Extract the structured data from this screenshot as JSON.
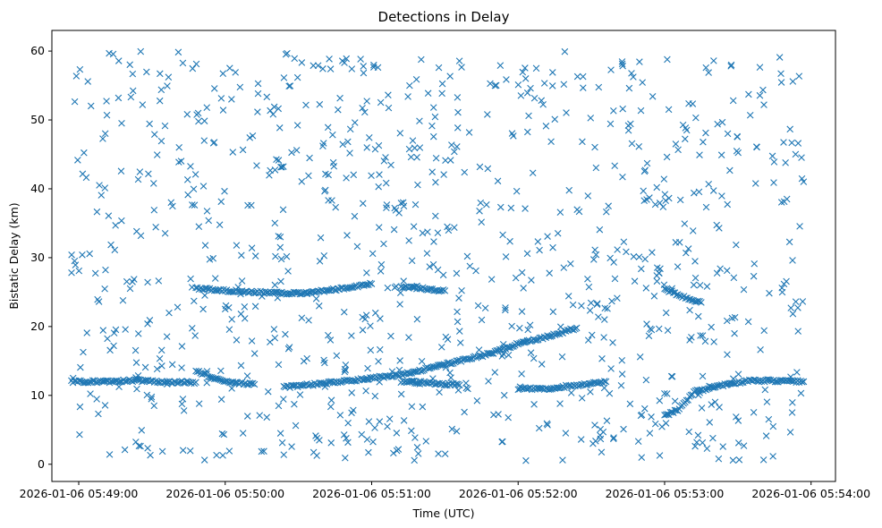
{
  "chart_data": {
    "type": "scatter",
    "title": "Detections in Delay",
    "xlabel": "Time (UTC)",
    "ylabel": "Bistatic Delay (km)",
    "xlim": [
      "2026-01-06 05:48:49",
      "2026-01-06 05:54:10"
    ],
    "ylim": [
      -2.5,
      63
    ],
    "x_ticks": [
      "2026-01-06 05:49:00",
      "2026-01-06 05:50:00",
      "2026-01-06 05:51:00",
      "2026-01-06 05:52:00",
      "2026-01-06 05:53:00",
      "2026-01-06 05:54:00"
    ],
    "y_ticks": [
      0,
      10,
      20,
      30,
      40,
      50,
      60
    ],
    "marker": "x",
    "color": "#1f77b4",
    "grid": false,
    "time_range": [
      "2026-01-06 05:48:57",
      "2026-01-06 05:53:57"
    ],
    "delay_range_km": [
      0.5,
      60
    ],
    "tracks": [
      {
        "points": [
          [
            "2026-01-06 05:48:57",
            12.0
          ],
          [
            "2026-01-06 05:49:12",
            12.0
          ],
          [
            "2026-01-06 05:49:24",
            12.2
          ],
          [
            "2026-01-06 05:49:36",
            11.9
          ],
          [
            "2026-01-06 05:49:48",
            11.9
          ]
        ]
      },
      {
        "points": [
          [
            "2026-01-06 05:49:48",
            13.5
          ],
          [
            "2026-01-06 05:50:00",
            12.0
          ],
          [
            "2026-01-06 05:50:12",
            11.6
          ]
        ]
      },
      {
        "points": [
          [
            "2026-01-06 05:50:24",
            11.2
          ],
          [
            "2026-01-06 05:50:48",
            12.0
          ],
          [
            "2026-01-06 05:51:12",
            13.0
          ],
          [
            "2026-01-06 05:51:24",
            14.0
          ],
          [
            "2026-01-06 05:51:36",
            15.0
          ],
          [
            "2026-01-06 05:51:48",
            16.0
          ],
          [
            "2026-01-06 05:52:00",
            17.5
          ],
          [
            "2026-01-06 05:52:12",
            18.5
          ],
          [
            "2026-01-06 05:52:24",
            19.8
          ]
        ]
      },
      {
        "points": [
          [
            "2026-01-06 05:51:12",
            12.0
          ],
          [
            "2026-01-06 05:51:24",
            11.8
          ],
          [
            "2026-01-06 05:51:36",
            11.5
          ]
        ]
      },
      {
        "points": [
          [
            "2026-01-06 05:51:12",
            25.8
          ],
          [
            "2026-01-06 05:51:21",
            25.5
          ],
          [
            "2026-01-06 05:51:30",
            25.2
          ]
        ]
      },
      {
        "points": [
          [
            "2026-01-06 05:52:00",
            11.0
          ],
          [
            "2026-01-06 05:52:12",
            11.0
          ],
          [
            "2026-01-06 05:52:24",
            11.5
          ],
          [
            "2026-01-06 05:52:36",
            12.0
          ]
        ]
      },
      {
        "points": [
          [
            "2026-01-06 05:53:00",
            7.0
          ],
          [
            "2026-01-06 05:53:06",
            8.0
          ],
          [
            "2026-01-06 05:53:12",
            10.5
          ],
          [
            "2026-01-06 05:53:24",
            11.5
          ],
          [
            "2026-01-06 05:53:36",
            12.2
          ],
          [
            "2026-01-06 05:53:57",
            12.0
          ]
        ]
      },
      {
        "points": [
          [
            "2026-01-06 05:53:00",
            25.5
          ],
          [
            "2026-01-06 05:53:06",
            24.5
          ],
          [
            "2026-01-06 05:53:15",
            23.5
          ]
        ]
      },
      {
        "points": [
          [
            "2026-01-06 05:49:48",
            25.5
          ],
          [
            "2026-01-06 05:50:12",
            25.0
          ],
          [
            "2026-01-06 05:50:30",
            24.8
          ],
          [
            "2026-01-06 05:50:48",
            25.5
          ],
          [
            "2026-01-06 05:51:00",
            26.2
          ]
        ]
      }
    ],
    "clutter_count": 950
  }
}
